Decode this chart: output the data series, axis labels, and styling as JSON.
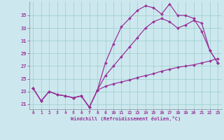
{
  "background_color": "#cce8ee",
  "grid_color": "#99cccc",
  "line_color": "#993399",
  "xlabel": "Windchill (Refroidissement éolien,°C)",
  "x_ticks": [
    0,
    1,
    2,
    3,
    4,
    5,
    6,
    7,
    8,
    9,
    10,
    11,
    12,
    13,
    14,
    15,
    16,
    17,
    18,
    19,
    20,
    21,
    22,
    23
  ],
  "y_ticks": [
    21,
    23,
    25,
    27,
    29,
    31,
    33,
    35
  ],
  "ylim": [
    20.2,
    37.2
  ],
  "xlim": [
    -0.5,
    23.5
  ],
  "line1_y": [
    23.5,
    21.5,
    23.0,
    22.5,
    22.3,
    22.0,
    22.3,
    20.5,
    23.2,
    27.5,
    30.5,
    33.2,
    34.5,
    35.8,
    36.5,
    36.2,
    35.2,
    36.8,
    35.0,
    35.0,
    34.5,
    32.5,
    29.5,
    27.5
  ],
  "line2_y": [
    23.5,
    21.5,
    23.0,
    22.5,
    22.3,
    22.0,
    22.3,
    20.5,
    23.2,
    25.5,
    27.0,
    28.5,
    30.0,
    31.5,
    33.0,
    34.0,
    34.5,
    34.0,
    33.0,
    33.5,
    34.2,
    33.8,
    29.5,
    27.5
  ],
  "line3_y": [
    23.5,
    21.5,
    23.0,
    22.5,
    22.3,
    22.0,
    22.3,
    20.5,
    23.2,
    23.8,
    24.2,
    24.5,
    24.8,
    25.2,
    25.5,
    25.8,
    26.2,
    26.5,
    26.8,
    27.0,
    27.2,
    27.5,
    27.8,
    28.2
  ]
}
